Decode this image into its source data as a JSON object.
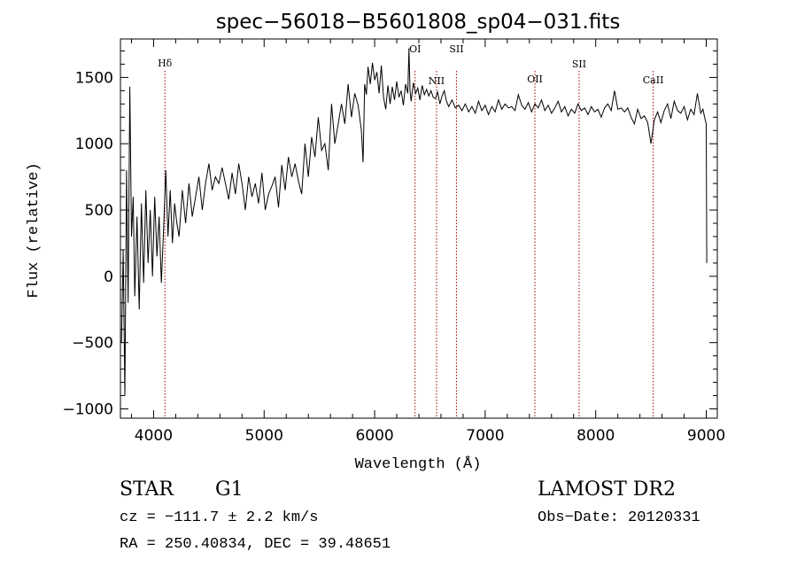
{
  "chart_data": {
    "type": "line",
    "title": "spec−56018−B5601808_sp04−031.fits",
    "xlabel": "Wavelength (Å)",
    "ylabel": "Flux (relative)",
    "xlim": [
      3700,
      9100
    ],
    "ylim": [
      -1070,
      1790
    ],
    "xticks": [
      4000,
      5000,
      6000,
      7000,
      8000,
      9000
    ],
    "yticks": [
      -1000,
      -500,
      0,
      500,
      1000,
      1500
    ],
    "grid": false,
    "legend": "none",
    "line_color": "#000000",
    "marker_color": "#990000",
    "series": [
      {
        "x": [
          3710,
          3725,
          3740,
          3755,
          3770,
          3785,
          3800,
          3815,
          3830,
          3850,
          3870,
          3890,
          3910,
          3930,
          3950,
          3970,
          3990,
          4010,
          4030,
          4050,
          4070,
          4090,
          4110,
          4130,
          4150,
          4170,
          4190,
          4210,
          4230,
          4260,
          4290,
          4320,
          4350,
          4380,
          4410,
          4440,
          4470,
          4500,
          4530,
          4560,
          4590,
          4620,
          4650,
          4680,
          4710,
          4740,
          4770,
          4800,
          4830,
          4860,
          4890,
          4920,
          4950,
          4980,
          5010,
          5040,
          5070,
          5100,
          5130,
          5160,
          5190,
          5220,
          5250,
          5280,
          5310,
          5340,
          5370,
          5400,
          5430,
          5460,
          5490,
          5520,
          5550,
          5580,
          5610,
          5640,
          5670,
          5700,
          5730,
          5760,
          5790,
          5820,
          5850,
          5880,
          5895,
          5910,
          5925,
          5940,
          5960,
          5980,
          6000,
          6020,
          6040,
          6060,
          6080,
          6100,
          6120,
          6140,
          6160,
          6180,
          6200,
          6220,
          6240,
          6260,
          6280,
          6300,
          6310,
          6320,
          6330,
          6350,
          6370,
          6390,
          6410,
          6430,
          6450,
          6470,
          6490,
          6510,
          6530,
          6550,
          6570,
          6590,
          6610,
          6630,
          6650,
          6670,
          6700,
          6730,
          6760,
          6790,
          6820,
          6850,
          6880,
          6910,
          6940,
          6970,
          7000,
          7030,
          7060,
          7090,
          7120,
          7150,
          7180,
          7210,
          7240,
          7270,
          7300,
          7330,
          7360,
          7390,
          7420,
          7450,
          7480,
          7510,
          7540,
          7570,
          7600,
          7630,
          7660,
          7690,
          7720,
          7750,
          7780,
          7810,
          7840,
          7870,
          7900,
          7930,
          7960,
          7990,
          8020,
          8050,
          8080,
          8110,
          8140,
          8170,
          8200,
          8230,
          8260,
          8290,
          8320,
          8350,
          8380,
          8410,
          8440,
          8470,
          8500,
          8530,
          8560,
          8590,
          8620,
          8650,
          8680,
          8710,
          8740,
          8770,
          8800,
          8830,
          8860,
          8890,
          8920,
          8950,
          8970,
          8990,
          9000,
          9005
        ],
        "y": [
          -500,
          200,
          -900,
          800,
          -200,
          1430,
          300,
          600,
          -150,
          450,
          -250,
          550,
          -50,
          650,
          100,
          500,
          0,
          600,
          150,
          450,
          -50,
          350,
          800,
          300,
          650,
          250,
          550,
          400,
          300,
          650,
          400,
          700,
          450,
          600,
          750,
          500,
          700,
          850,
          650,
          750,
          700,
          820,
          700,
          580,
          780,
          620,
          850,
          700,
          500,
          750,
          600,
          700,
          550,
          780,
          500,
          620,
          680,
          750,
          520,
          840,
          650,
          900,
          750,
          850,
          720,
          620,
          1000,
          750,
          1050,
          900,
          1200,
          950,
          1000,
          800,
          1300,
          1000,
          1150,
          1300,
          1150,
          1450,
          1200,
          1380,
          1290,
          1100,
          860,
          1450,
          1370,
          1580,
          1450,
          1610,
          1480,
          1540,
          1380,
          1590,
          1350,
          1260,
          1440,
          1300,
          1430,
          1330,
          1470,
          1350,
          1400,
          1290,
          1450,
          1380,
          1720,
          1400,
          1320,
          1460,
          1380,
          1420,
          1330,
          1440,
          1370,
          1410,
          1360,
          1400,
          1350,
          1340,
          1390,
          1300,
          1360,
          1400,
          1320,
          1280,
          1330,
          1270,
          1290,
          1250,
          1300,
          1240,
          1280,
          1230,
          1320,
          1250,
          1290,
          1220,
          1280,
          1240,
          1330,
          1260,
          1300,
          1270,
          1280,
          1250,
          1370,
          1290,
          1260,
          1310,
          1240,
          1300,
          1270,
          1330,
          1250,
          1290,
          1230,
          1270,
          1320,
          1240,
          1280,
          1210,
          1260,
          1230,
          1300,
          1250,
          1270,
          1220,
          1280,
          1240,
          1260,
          1200,
          1270,
          1300,
          1250,
          1400,
          1260,
          1270,
          1240,
          1270,
          1200,
          1150,
          1260,
          1190,
          1210,
          1160,
          1000,
          1180,
          1240,
          1160,
          1250,
          1300,
          1190,
          1320,
          1250,
          1230,
          1280,
          1180,
          1260,
          1220,
          1380,
          1230,
          1260,
          1180,
          1150,
          100
        ]
      }
    ],
    "lines": [
      {
        "name": "Hδ",
        "x": 4102
      },
      {
        "name": "OI",
        "x": 6366
      },
      {
        "name": "NII",
        "x": 6560
      },
      {
        "name": "SII",
        "x": 6740
      },
      {
        "name": "OII",
        "x": 7450
      },
      {
        "name": "SII",
        "x": 7850
      },
      {
        "name": "CaII",
        "x": 8520
      }
    ]
  },
  "info": {
    "object_type": "STAR",
    "subclass": "G1",
    "survey": "LAMOST DR2",
    "cz": "cz = −111.7 ± 2.2 km/s",
    "obs_date": "Obs−Date: 20120331",
    "coords": "RA = 250.40834, DEC =  39.48651"
  }
}
